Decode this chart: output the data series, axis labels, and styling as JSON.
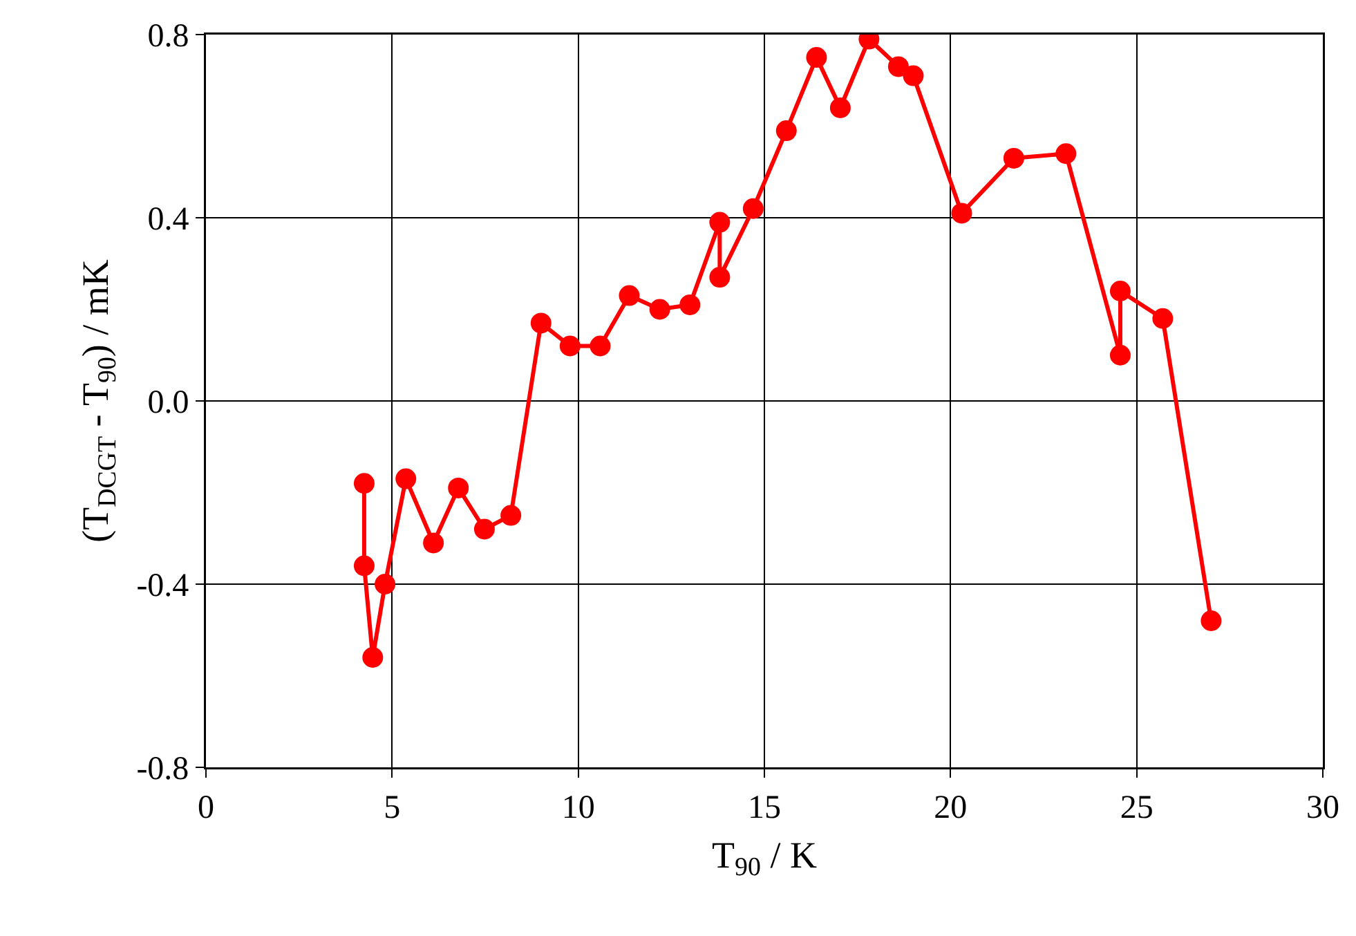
{
  "chart_data": {
    "type": "line",
    "xlabel": "T$_{90}$ / K",
    "ylabel": "(T$_{DCGT}$ - T$_{90}$) / mK",
    "x": [
      4.25,
      4.25,
      4.48,
      4.81,
      5.37,
      6.11,
      6.78,
      7.48,
      8.19,
      9.0,
      9.78,
      10.59,
      11.37,
      12.19,
      13.0,
      13.8,
      13.8,
      14.7,
      15.59,
      16.4,
      17.04,
      17.81,
      18.6,
      19.0,
      20.3,
      21.7,
      23.1,
      24.56,
      24.56,
      25.7,
      27.0
    ],
    "series": [
      {
        "color": "#ff0000",
        "values": [
          -0.18,
          -0.36,
          -0.56,
          -0.4,
          -0.17,
          -0.31,
          -0.19,
          -0.28,
          -0.25,
          0.17,
          0.12,
          0.12,
          0.23,
          0.2,
          0.21,
          0.39,
          0.27,
          0.42,
          0.59,
          0.75,
          0.64,
          0.79,
          0.73,
          0.71,
          0.41,
          0.53,
          0.54,
          0.1,
          0.24,
          0.18,
          -0.48
        ]
      }
    ],
    "xlim": [
      0,
      30
    ],
    "xticks": [
      0,
      5,
      10,
      15,
      20,
      25,
      30
    ],
    "ylim": [
      -0.8,
      0.8
    ],
    "yticks": [
      {
        "value": -0.8,
        "label": "-0.8"
      },
      {
        "value": -0.4,
        "label": "-0.4"
      },
      {
        "value": 0,
        "label": "0.0"
      },
      {
        "value": 0.4,
        "label": "0.4"
      },
      {
        "value": 0.8,
        "label": "0.8"
      }
    ],
    "grid": true,
    "marker": "circle",
    "line_style": "solid"
  }
}
